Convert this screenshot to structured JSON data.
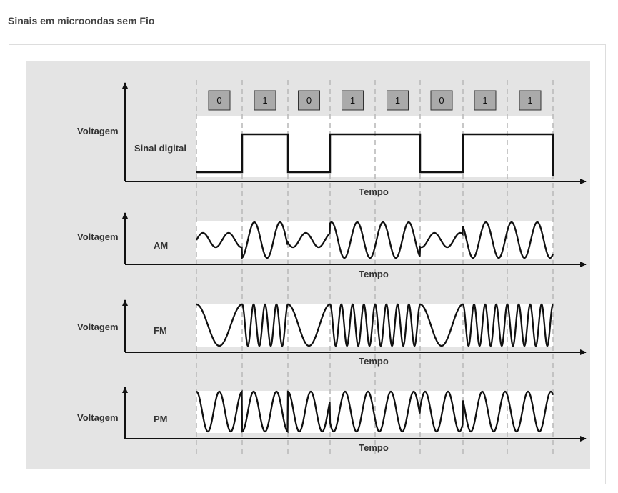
{
  "page": {
    "title": "Sinais em microondas sem Fio"
  },
  "bits": [
    "0",
    "1",
    "0",
    "1",
    "1",
    "0",
    "1",
    "1"
  ],
  "colors": {
    "panel": "#e4e4e4",
    "plot": "#ffffff",
    "bit_box": "#aaaaaa",
    "signal": "#111111",
    "divider": "#bbbbbb"
  },
  "rows": [
    {
      "id": "digital",
      "ylabel": "Voltagem",
      "name": "Sinal digital",
      "xlabel": "Tempo"
    },
    {
      "id": "am",
      "ylabel": "Voltagem",
      "name": "AM",
      "xlabel": "Tempo"
    },
    {
      "id": "fm",
      "ylabel": "Voltagem",
      "name": "FM",
      "xlabel": "Tempo"
    },
    {
      "id": "pm",
      "ylabel": "Voltagem",
      "name": "PM",
      "xlabel": "Tempo"
    }
  ]
}
